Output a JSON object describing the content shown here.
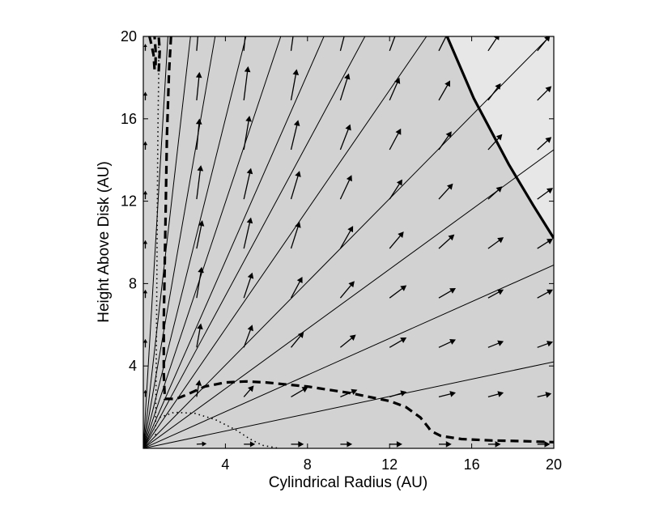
{
  "chart_data": {
    "type": "line",
    "title": "",
    "xlabel": "Cylindrical Radius (AU)",
    "ylabel": "Height Above Disk (AU)",
    "xlim": [
      0,
      20
    ],
    "ylim": [
      0,
      20
    ],
    "x_ticks": [
      4,
      8,
      12,
      16,
      20
    ],
    "y_ticks": [
      4,
      8,
      12,
      16,
      20
    ],
    "x_tick_labels": [
      "4",
      "8",
      "12",
      "16",
      "20"
    ],
    "y_tick_labels": [
      "4",
      "8",
      "12",
      "16",
      "20"
    ],
    "grid": false,
    "shaded_regions": [
      {
        "shade": "#ababab",
        "boundary": [
          [
            0,
            0
          ],
          [
            0,
            20
          ],
          [
            0.15,
            20
          ],
          [
            0.3,
            19.5
          ],
          [
            0.5,
            19
          ],
          [
            0.7,
            17
          ],
          [
            0.8,
            16
          ],
          [
            0.9,
            14
          ],
          [
            1.0,
            12
          ],
          [
            1.1,
            10
          ],
          [
            1.3,
            6
          ],
          [
            1.6,
            3.5
          ],
          [
            2.0,
            2.0
          ],
          [
            2.6,
            1.2
          ],
          [
            3.2,
            0.8
          ],
          [
            4.0,
            0.4
          ],
          [
            5.0,
            0.1
          ],
          [
            6.5,
            0
          ]
        ]
      },
      {
        "shade": "#bcbcbc",
        "boundary": [
          [
            0,
            0
          ],
          [
            0,
            17
          ],
          [
            1.2,
            17
          ],
          [
            1.5,
            19.5
          ],
          [
            1.6,
            20
          ],
          [
            2.4,
            20
          ],
          [
            2.2,
            19
          ],
          [
            2.3,
            17
          ],
          [
            2.3,
            15.5
          ],
          [
            2.5,
            13.8
          ],
          [
            2.5,
            12.8
          ],
          [
            3.1,
            12.5
          ],
          [
            3.6,
            11.5
          ],
          [
            4.0,
            10
          ],
          [
            4.5,
            8.5
          ],
          [
            5.2,
            7
          ],
          [
            6.0,
            5.6
          ],
          [
            7.0,
            4
          ],
          [
            8.0,
            2.6
          ],
          [
            8.8,
            1.5
          ],
          [
            9.5,
            0.7
          ],
          [
            9.9,
            0.45
          ],
          [
            9.9,
            0
          ]
        ]
      },
      {
        "shade": "#d2d2d2",
        "boundary": [
          [
            0,
            0
          ],
          [
            0,
            20
          ],
          [
            14.8,
            20
          ],
          [
            16.1,
            17
          ],
          [
            17.8,
            13.8
          ],
          [
            19.0,
            11.8
          ],
          [
            20,
            10.2
          ],
          [
            20,
            0
          ]
        ]
      },
      {
        "shade": "#e7e7e7",
        "boundary": [
          [
            14.8,
            20
          ],
          [
            20,
            20
          ],
          [
            20,
            10.2
          ],
          [
            19.0,
            11.8
          ],
          [
            17.8,
            13.8
          ],
          [
            16.1,
            17
          ]
        ]
      }
    ],
    "series": [
      {
        "style": "solid",
        "points": [
          [
            0,
            0
          ],
          [
            20,
            4.2
          ]
        ]
      },
      {
        "style": "solid",
        "points": [
          [
            0,
            0
          ],
          [
            20,
            8.9
          ]
        ]
      },
      {
        "style": "solid",
        "points": [
          [
            0,
            0
          ],
          [
            20,
            14.5
          ]
        ]
      },
      {
        "style": "solid",
        "points": [
          [
            0,
            0
          ],
          [
            19.8,
            20
          ]
        ]
      },
      {
        "style": "solid",
        "points": [
          [
            0,
            0
          ],
          [
            13.8,
            20
          ]
        ]
      },
      {
        "style": "solid",
        "points": [
          [
            0,
            0
          ],
          [
            10.8,
            20
          ]
        ]
      },
      {
        "style": "solid",
        "points": [
          [
            0,
            0
          ],
          [
            8.8,
            20
          ]
        ]
      },
      {
        "style": "solid",
        "points": [
          [
            0,
            0
          ],
          [
            6.7,
            20
          ]
        ]
      },
      {
        "style": "solid",
        "points": [
          [
            0,
            0
          ],
          [
            5.0,
            20
          ]
        ]
      },
      {
        "style": "solid",
        "points": [
          [
            0,
            0
          ],
          [
            3.5,
            20
          ]
        ]
      },
      {
        "style": "solid",
        "points": [
          [
            0,
            0
          ],
          [
            2.3,
            20
          ]
        ]
      },
      {
        "style": "solid",
        "points": [
          [
            0,
            0
          ],
          [
            1.2,
            20
          ]
        ]
      },
      {
        "style": "thick",
        "points": [
          [
            14.8,
            20
          ],
          [
            16.1,
            17
          ],
          [
            17.8,
            13.8
          ],
          [
            19.0,
            11.8
          ],
          [
            20,
            10.2
          ]
        ]
      },
      {
        "style": "dashed",
        "points": [
          [
            0.55,
            18.4
          ],
          [
            0.5,
            19.1
          ],
          [
            0.35,
            19.8
          ],
          [
            0.3,
            20
          ]
        ]
      },
      {
        "style": "dashed",
        "points": [
          [
            0.75,
            18.3
          ],
          [
            0.8,
            19.3
          ],
          [
            0.75,
            20
          ]
        ]
      },
      {
        "style": "dashed",
        "points": [
          [
            0.6,
            18.6
          ],
          [
            0.6,
            19.3
          ],
          [
            0.55,
            20
          ]
        ]
      },
      {
        "style": "dashed",
        "points": [
          [
            1.35,
            20
          ],
          [
            1.25,
            18.2
          ],
          [
            1.15,
            15.2
          ],
          [
            1.1,
            12.2
          ],
          [
            1.05,
            9.2
          ],
          [
            1.0,
            6.2
          ],
          [
            1.0,
            3.6
          ],
          [
            1.05,
            2.4
          ],
          [
            1.6,
            2.4
          ],
          [
            2.1,
            2.6
          ],
          [
            3.0,
            3.0
          ],
          [
            4.0,
            3.2
          ],
          [
            5.0,
            3.25
          ],
          [
            6.0,
            3.2
          ],
          [
            7.0,
            3.1
          ],
          [
            8.0,
            3.0
          ],
          [
            9.0,
            2.85
          ],
          [
            10.0,
            2.7
          ],
          [
            11.0,
            2.5
          ],
          [
            12.0,
            2.3
          ],
          [
            12.8,
            2.0
          ],
          [
            13.5,
            1.5
          ],
          [
            13.9,
            1.0
          ],
          [
            14.0,
            0.85
          ],
          [
            14.5,
            0.6
          ],
          [
            15.5,
            0.45
          ],
          [
            17.0,
            0.38
          ],
          [
            18.5,
            0.35
          ],
          [
            20,
            0.3
          ]
        ]
      },
      {
        "style": "dotted",
        "points": [
          [
            0.75,
            19.5
          ],
          [
            0.75,
            18.0
          ],
          [
            0.72,
            16.3
          ],
          [
            0.7,
            14.0
          ],
          [
            0.68,
            11.0
          ],
          [
            0.66,
            8.0
          ],
          [
            0.64,
            5.0
          ],
          [
            0.62,
            3.0
          ],
          [
            0.6,
            1.5
          ],
          [
            0.6,
            0.6
          ]
        ]
      },
      {
        "style": "dotted",
        "points": [
          [
            0.8,
            1.5
          ],
          [
            1.5,
            1.75
          ],
          [
            2.5,
            1.7
          ],
          [
            3.5,
            1.4
          ],
          [
            4.5,
            0.9
          ],
          [
            5.2,
            0.45
          ],
          [
            5.8,
            0.15
          ],
          [
            6.6,
            0
          ]
        ]
      }
    ],
    "velocity_field": {
      "x": [
        0.1,
        2.6,
        4.9,
        7.2,
        9.6,
        12.0,
        14.4,
        16.8,
        19.2
      ],
      "y": [
        0.2,
        2.5,
        4.9,
        7.3,
        9.7,
        12.1,
        14.5,
        16.9,
        19.3
      ],
      "max_length": 1.2,
      "vectors": [
        [
          [
            0,
            0.08
          ],
          [
            0.35,
            0.02
          ],
          [
            0.4,
            0
          ],
          [
            0.45,
            0
          ],
          [
            0.42,
            0
          ],
          [
            0.45,
            0
          ],
          [
            0.45,
            0
          ],
          [
            0.45,
            0
          ],
          [
            0.45,
            0
          ]
        ],
        [
          [
            0,
            0.25
          ],
          [
            0.1,
            0.6
          ],
          [
            0.35,
            0.4
          ],
          [
            0.6,
            0.35
          ],
          [
            0.6,
            0.25
          ],
          [
            0.6,
            0.18
          ],
          [
            0.6,
            0.15
          ],
          [
            0.55,
            0.15
          ],
          [
            0.5,
            0.12
          ]
        ],
        [
          [
            0,
            0.3
          ],
          [
            0.15,
            0.85
          ],
          [
            0.3,
            0.8
          ],
          [
            0.45,
            0.55
          ],
          [
            0.55,
            0.45
          ],
          [
            0.6,
            0.35
          ],
          [
            0.6,
            0.28
          ],
          [
            0.55,
            0.22
          ],
          [
            0.55,
            0.2
          ]
        ],
        [
          [
            0,
            0.3
          ],
          [
            0.18,
            1.1
          ],
          [
            0.3,
            0.9
          ],
          [
            0.4,
            0.75
          ],
          [
            0.5,
            0.6
          ],
          [
            0.6,
            0.45
          ],
          [
            0.6,
            0.35
          ],
          [
            0.55,
            0.3
          ],
          [
            0.55,
            0.3
          ]
        ],
        [
          [
            0,
            0.3
          ],
          [
            0.2,
            1.0
          ],
          [
            0.25,
            1.1
          ],
          [
            0.3,
            0.95
          ],
          [
            0.45,
            0.8
          ],
          [
            0.5,
            0.6
          ],
          [
            0.55,
            0.5
          ],
          [
            0.55,
            0.4
          ],
          [
            0.55,
            0.35
          ]
        ],
        [
          [
            0,
            0.3
          ],
          [
            0.15,
            1.2
          ],
          [
            0.25,
            1.1
          ],
          [
            0.3,
            1.0
          ],
          [
            0.4,
            0.85
          ],
          [
            0.45,
            0.7
          ],
          [
            0.5,
            0.55
          ],
          [
            0.5,
            0.45
          ],
          [
            0.55,
            0.4
          ]
        ],
        [
          [
            0,
            0.3
          ],
          [
            0.1,
            1.1
          ],
          [
            0.2,
            1.2
          ],
          [
            0.25,
            1.05
          ],
          [
            0.35,
            0.9
          ],
          [
            0.4,
            0.75
          ],
          [
            0.45,
            0.65
          ],
          [
            0.5,
            0.55
          ],
          [
            0.5,
            0.45
          ]
        ],
        [
          [
            0,
            0.3
          ],
          [
            0.1,
            1.0
          ],
          [
            0.15,
            1.2
          ],
          [
            0.2,
            1.1
          ],
          [
            0.3,
            0.95
          ],
          [
            0.35,
            0.8
          ],
          [
            0.4,
            0.7
          ],
          [
            0.45,
            0.6
          ],
          [
            0.5,
            0.5
          ]
        ],
        [
          [
            0,
            0.25
          ],
          [
            0.08,
            1.0
          ],
          [
            0.1,
            1.1
          ],
          [
            0.15,
            1.1
          ],
          [
            0.25,
            0.95
          ],
          [
            0.3,
            0.8
          ],
          [
            0.35,
            0.7
          ],
          [
            0.4,
            0.6
          ],
          [
            0.45,
            0.55
          ]
        ]
      ]
    }
  }
}
